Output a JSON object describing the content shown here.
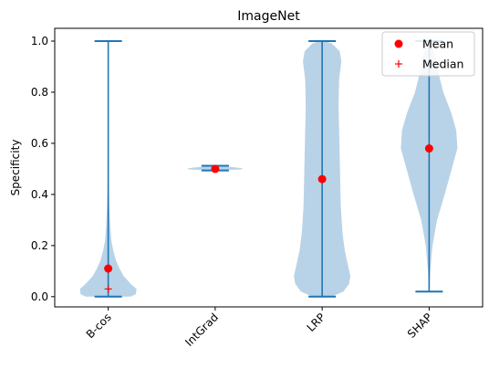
{
  "chart_data": {
    "type": "violin",
    "title": "ImageNet",
    "xlabel": "",
    "ylabel": "Specificity",
    "ylim": [
      -0.04,
      1.05
    ],
    "yticks": [
      0.0,
      0.2,
      0.4,
      0.6,
      0.8,
      1.0
    ],
    "ytick_labels": [
      "0.0",
      "0.2",
      "0.4",
      "0.6",
      "0.8",
      "1.0"
    ],
    "categories": [
      "B-cos",
      "IntGrad",
      "LRP",
      "SHAP"
    ],
    "violins": [
      {
        "category": "B-cos",
        "min": 0.0,
        "max": 1.0,
        "mean": 0.11,
        "median": 0.03,
        "density": [
          [
            0.0,
            0.8
          ],
          [
            0.01,
            0.98
          ],
          [
            0.03,
            1.0
          ],
          [
            0.05,
            0.8
          ],
          [
            0.08,
            0.55
          ],
          [
            0.11,
            0.4
          ],
          [
            0.14,
            0.28
          ],
          [
            0.18,
            0.18
          ],
          [
            0.22,
            0.11
          ],
          [
            0.28,
            0.07
          ],
          [
            0.35,
            0.04
          ],
          [
            0.45,
            0.02
          ],
          [
            0.6,
            0.01
          ],
          [
            0.8,
            0.005
          ],
          [
            1.0,
            0.004
          ]
        ]
      },
      {
        "category": "IntGrad",
        "min": 0.494,
        "max": 0.512,
        "mean": 0.5,
        "median": 0.5,
        "density": [
          [
            0.494,
            0.2
          ],
          [
            0.498,
            0.9
          ],
          [
            0.5,
            1.0
          ],
          [
            0.503,
            0.9
          ],
          [
            0.512,
            0.2
          ]
        ]
      },
      {
        "category": "LRP",
        "min": 0.0,
        "max": 1.0,
        "mean": 0.46,
        "median": 0.46,
        "density": [
          [
            0.0,
            0.35
          ],
          [
            0.02,
            0.75
          ],
          [
            0.05,
            0.95
          ],
          [
            0.08,
            1.0
          ],
          [
            0.12,
            0.92
          ],
          [
            0.18,
            0.8
          ],
          [
            0.25,
            0.72
          ],
          [
            0.35,
            0.66
          ],
          [
            0.45,
            0.64
          ],
          [
            0.55,
            0.62
          ],
          [
            0.65,
            0.6
          ],
          [
            0.75,
            0.58
          ],
          [
            0.85,
            0.6
          ],
          [
            0.92,
            0.68
          ],
          [
            0.96,
            0.62
          ],
          [
            0.99,
            0.35
          ],
          [
            1.0,
            0.1
          ]
        ]
      },
      {
        "category": "SHAP",
        "min": 0.02,
        "max": 1.0,
        "mean": 0.58,
        "median": 0.58,
        "density": [
          [
            0.02,
            0.01
          ],
          [
            0.1,
            0.04
          ],
          [
            0.2,
            0.12
          ],
          [
            0.3,
            0.28
          ],
          [
            0.4,
            0.55
          ],
          [
            0.5,
            0.8
          ],
          [
            0.58,
            1.0
          ],
          [
            0.65,
            0.96
          ],
          [
            0.72,
            0.78
          ],
          [
            0.8,
            0.5
          ],
          [
            0.88,
            0.32
          ],
          [
            0.93,
            0.25
          ],
          [
            0.97,
            0.12
          ],
          [
            1.0,
            0.02
          ]
        ]
      }
    ],
    "legend": {
      "placement": "top-right",
      "entries": [
        {
          "label": "Mean",
          "marker": "filled-circle",
          "color": "#ff0000"
        },
        {
          "label": "Median",
          "marker": "plus",
          "color": "#ff0000"
        }
      ]
    },
    "colors": {
      "violin_fill": "#b8d3e8",
      "line": "#1f77b4",
      "marker": "#ff0000"
    },
    "grid": false
  }
}
